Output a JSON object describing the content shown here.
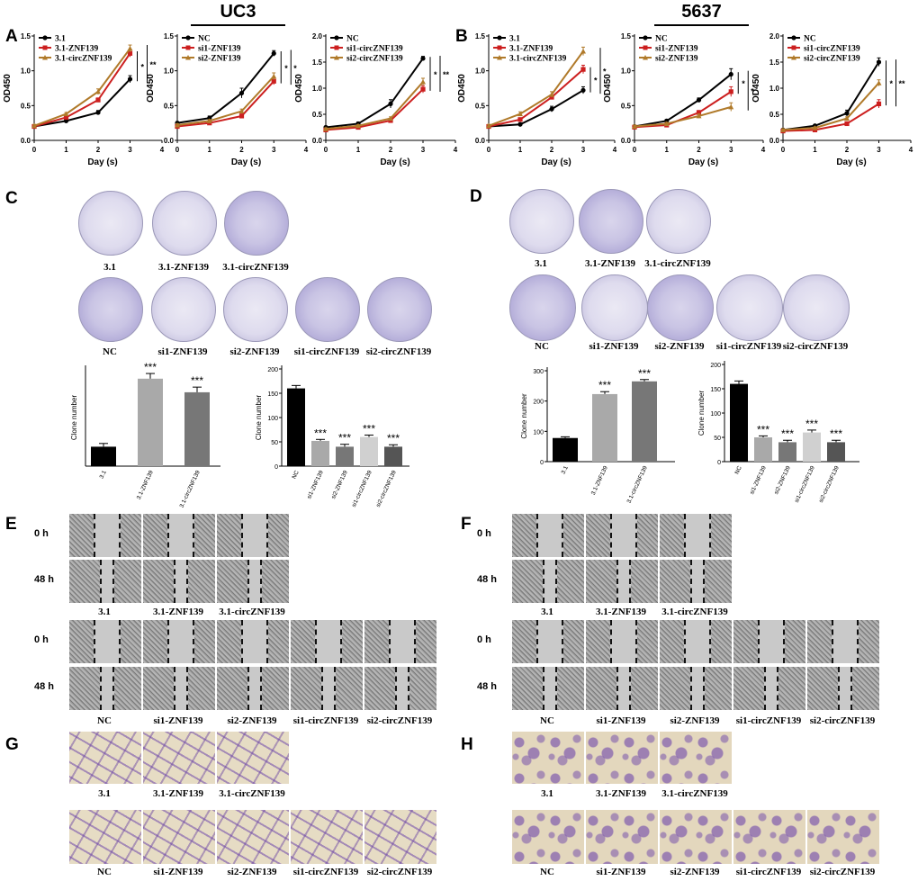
{
  "headers": {
    "left": "UC3",
    "right": "5637"
  },
  "panels": {
    "A": "A",
    "B": "B",
    "C": "C",
    "D": "D",
    "E": "E",
    "F": "F",
    "G": "G",
    "H": "H"
  },
  "time_labels": {
    "t0": "0 h",
    "t48": "48 h"
  },
  "captions": {
    "top": [
      "3.1",
      "3.1-ZNF139",
      "3.1-circZNF139"
    ],
    "bottom": [
      "NC",
      "si1-ZNF139",
      "si2-ZNF139",
      "si1-circZNF139",
      "si2-circZNF139"
    ]
  },
  "chart_data": [
    {
      "id": "A1",
      "type": "line",
      "cell": "UC3",
      "xlabel": "Day (s)",
      "ylabel": "OD450",
      "x": [
        0,
        1,
        2,
        3
      ],
      "xlim": [
        0,
        4
      ],
      "ylim": [
        0,
        1.5
      ],
      "xticks": [
        "0",
        "1",
        "2",
        "3",
        "4"
      ],
      "yticks": [
        "0.0",
        "0.5",
        "1.0",
        "1.5"
      ],
      "series": [
        {
          "name": "3.1",
          "color": "#000000",
          "values": [
            0.2,
            0.28,
            0.4,
            0.88
          ],
          "err": [
            0.02,
            0.02,
            0.03,
            0.05
          ]
        },
        {
          "name": "3.1-ZNF139",
          "color": "#cc1f1f",
          "values": [
            0.2,
            0.33,
            0.58,
            1.25
          ],
          "err": [
            0.02,
            0.02,
            0.03,
            0.05
          ]
        },
        {
          "name": "3.1-circZNF139",
          "color": "#b07a2a",
          "values": [
            0.21,
            0.38,
            0.7,
            1.32
          ],
          "err": [
            0.02,
            0.02,
            0.04,
            0.05
          ]
        }
      ],
      "annotations": [
        "*",
        "**"
      ]
    },
    {
      "id": "A2",
      "type": "line",
      "cell": "UC3",
      "xlabel": "Day (s)",
      "ylabel": "OD450",
      "x": [
        0,
        1,
        2,
        3
      ],
      "xlim": [
        0,
        4
      ],
      "ylim": [
        0,
        1.5
      ],
      "xticks": [
        "0",
        "1",
        "2",
        "3",
        "4"
      ],
      "yticks": [
        "0.0",
        "0.5",
        "1.0",
        "1.5"
      ],
      "series": [
        {
          "name": "NC",
          "color": "#000000",
          "values": [
            0.25,
            0.32,
            0.68,
            1.25
          ],
          "err": [
            0.02,
            0.03,
            0.07,
            0.04
          ]
        },
        {
          "name": "si1-ZNF139",
          "color": "#cc1f1f",
          "values": [
            0.2,
            0.25,
            0.35,
            0.85
          ],
          "err": [
            0.02,
            0.02,
            0.03,
            0.05
          ]
        },
        {
          "name": "si2-ZNF139",
          "color": "#b07a2a",
          "values": [
            0.22,
            0.28,
            0.42,
            0.92
          ],
          "err": [
            0.02,
            0.02,
            0.03,
            0.05
          ]
        }
      ],
      "annotations": [
        "*",
        "*"
      ]
    },
    {
      "id": "A3",
      "type": "line",
      "cell": "UC3",
      "xlabel": "Day (s)",
      "ylabel": "OD450",
      "x": [
        0,
        1,
        2,
        3
      ],
      "xlim": [
        0,
        4
      ],
      "ylim": [
        0,
        2.0
      ],
      "xticks": [
        "0",
        "1",
        "2",
        "3",
        "4"
      ],
      "yticks": [
        "0.0",
        "0.5",
        "1.0",
        "1.5",
        "2.0"
      ],
      "series": [
        {
          "name": "NC",
          "color": "#000000",
          "values": [
            0.25,
            0.32,
            0.7,
            1.57
          ],
          "err": [
            0.02,
            0.03,
            0.08,
            0.04
          ]
        },
        {
          "name": "si1-circZNF139",
          "color": "#cc1f1f",
          "values": [
            0.2,
            0.25,
            0.38,
            0.98
          ],
          "err": [
            0.02,
            0.02,
            0.03,
            0.07
          ]
        },
        {
          "name": "si2-circZNF139",
          "color": "#b07a2a",
          "values": [
            0.22,
            0.28,
            0.42,
            1.12
          ],
          "err": [
            0.02,
            0.02,
            0.03,
            0.07
          ]
        }
      ],
      "annotations": [
        "*",
        "**"
      ]
    },
    {
      "id": "B1",
      "type": "line",
      "cell": "5637",
      "xlabel": "Day (s)",
      "ylabel": "OD450",
      "x": [
        0,
        1,
        2,
        3
      ],
      "xlim": [
        0,
        4
      ],
      "ylim": [
        0,
        1.5
      ],
      "xticks": [
        "0",
        "1",
        "2",
        "3",
        "4"
      ],
      "yticks": [
        "0.0",
        "0.5",
        "1.0",
        "1.5"
      ],
      "series": [
        {
          "name": "3.1",
          "color": "#000000",
          "values": [
            0.2,
            0.23,
            0.45,
            0.72
          ],
          "err": [
            0.02,
            0.02,
            0.04,
            0.05
          ]
        },
        {
          "name": "3.1-ZNF139",
          "color": "#cc1f1f",
          "values": [
            0.2,
            0.3,
            0.62,
            1.02
          ],
          "err": [
            0.02,
            0.02,
            0.03,
            0.06
          ]
        },
        {
          "name": "3.1-circZNF139",
          "color": "#b07a2a",
          "values": [
            0.21,
            0.38,
            0.66,
            1.28
          ],
          "err": [
            0.02,
            0.03,
            0.04,
            0.06
          ]
        }
      ],
      "annotations": [
        "*",
        "*"
      ]
    },
    {
      "id": "B2",
      "type": "line",
      "cell": "5637",
      "xlabel": "Day (s)",
      "ylabel": "OD450",
      "x": [
        0,
        1,
        2,
        3
      ],
      "xlim": [
        0,
        4
      ],
      "ylim": [
        0,
        1.5
      ],
      "xticks": [
        "0",
        "1",
        "2",
        "3",
        "4"
      ],
      "yticks": [
        "0.0",
        "0.5",
        "1.0",
        "1.5"
      ],
      "series": [
        {
          "name": "NC",
          "color": "#000000",
          "values": [
            0.2,
            0.28,
            0.58,
            0.95
          ],
          "err": [
            0.02,
            0.02,
            0.03,
            0.08
          ]
        },
        {
          "name": "si1-ZNF139",
          "color": "#cc1f1f",
          "values": [
            0.19,
            0.22,
            0.4,
            0.7
          ],
          "err": [
            0.02,
            0.02,
            0.03,
            0.07
          ]
        },
        {
          "name": "si2-ZNF139",
          "color": "#b07a2a",
          "values": [
            0.2,
            0.24,
            0.35,
            0.48
          ],
          "err": [
            0.02,
            0.02,
            0.03,
            0.06
          ]
        }
      ],
      "annotations": [
        "*",
        "*"
      ]
    },
    {
      "id": "B3",
      "type": "line",
      "cell": "5637",
      "xlabel": "Day (s)",
      "ylabel": "OD450",
      "x": [
        0,
        1,
        2,
        3
      ],
      "xlim": [
        0,
        4
      ],
      "ylim": [
        0,
        2.0
      ],
      "xticks": [
        "0",
        "1",
        "2",
        "3",
        "4"
      ],
      "yticks": [
        "0.0",
        "0.5",
        "1.0",
        "1.5",
        "2.0"
      ],
      "series": [
        {
          "name": "NC",
          "color": "#000000",
          "values": [
            0.2,
            0.28,
            0.52,
            1.5
          ],
          "err": [
            0.02,
            0.02,
            0.06,
            0.08
          ]
        },
        {
          "name": "si1-circZNF139",
          "color": "#cc1f1f",
          "values": [
            0.18,
            0.2,
            0.32,
            0.7
          ],
          "err": [
            0.02,
            0.02,
            0.03,
            0.08
          ]
        },
        {
          "name": "si2-circZNF139",
          "color": "#b07a2a",
          "values": [
            0.2,
            0.24,
            0.42,
            1.1
          ],
          "err": [
            0.02,
            0.02,
            0.03,
            0.06
          ]
        }
      ],
      "annotations": [
        "*",
        "**"
      ]
    },
    {
      "id": "C1",
      "type": "bar",
      "cell": "UC3",
      "ylabel": "Clone number",
      "categories": [
        "3.1",
        "3.1-ZNF139",
        "3.1-circZNF139"
      ],
      "values": [
        30,
        135,
        114
      ],
      "err": [
        5,
        8,
        8
      ],
      "colors": [
        "#000000",
        "#a9a9a9",
        "#777777"
      ],
      "sig": [
        "",
        "***",
        "***"
      ],
      "ylim": [
        0,
        150
      ]
    },
    {
      "id": "C2",
      "type": "bar",
      "cell": "UC3",
      "ylabel": "Clone number",
      "categories": [
        "NC",
        "si1-ZNF139",
        "si2-ZNF139",
        "si1-circZNF139",
        "si2-circZNF139"
      ],
      "values": [
        160,
        52,
        40,
        60,
        40
      ],
      "err": [
        6,
        3,
        5,
        4,
        4
      ],
      "colors": [
        "#000000",
        "#a9a9a9",
        "#777777",
        "#d0d0d0",
        "#555555"
      ],
      "sig": [
        "",
        "***",
        "***",
        "***",
        "***"
      ],
      "ylim": [
        0,
        200
      ],
      "yticks": [
        "0",
        "50",
        "100",
        "150",
        "200"
      ]
    },
    {
      "id": "D1",
      "type": "bar",
      "cell": "5637",
      "ylabel": "Clone number",
      "categories": [
        "3.1",
        "3.1-ZNF139",
        "3.1-circZNF139"
      ],
      "values": [
        78,
        223,
        265
      ],
      "err": [
        4,
        8,
        6
      ],
      "colors": [
        "#000000",
        "#a9a9a9",
        "#777777"
      ],
      "sig": [
        "",
        "***",
        "***"
      ],
      "ylim": [
        0,
        300
      ],
      "yticks": [
        "0",
        "100",
        "200",
        "300"
      ]
    },
    {
      "id": "D2",
      "type": "bar",
      "cell": "5637",
      "ylabel": "Clone number",
      "categories": [
        "NC",
        "si1-ZNF139",
        "si2-ZNF139",
        "si1-circZNF139",
        "si2-circZNF139"
      ],
      "values": [
        160,
        50,
        40,
        60,
        40
      ],
      "err": [
        6,
        3,
        4,
        5,
        4
      ],
      "colors": [
        "#000000",
        "#a9a9a9",
        "#777777",
        "#d0d0d0",
        "#555555"
      ],
      "sig": [
        "",
        "***",
        "***",
        "***",
        "***"
      ],
      "ylim": [
        0,
        200
      ],
      "yticks": [
        "0",
        "50",
        "100",
        "150",
        "200"
      ]
    }
  ]
}
